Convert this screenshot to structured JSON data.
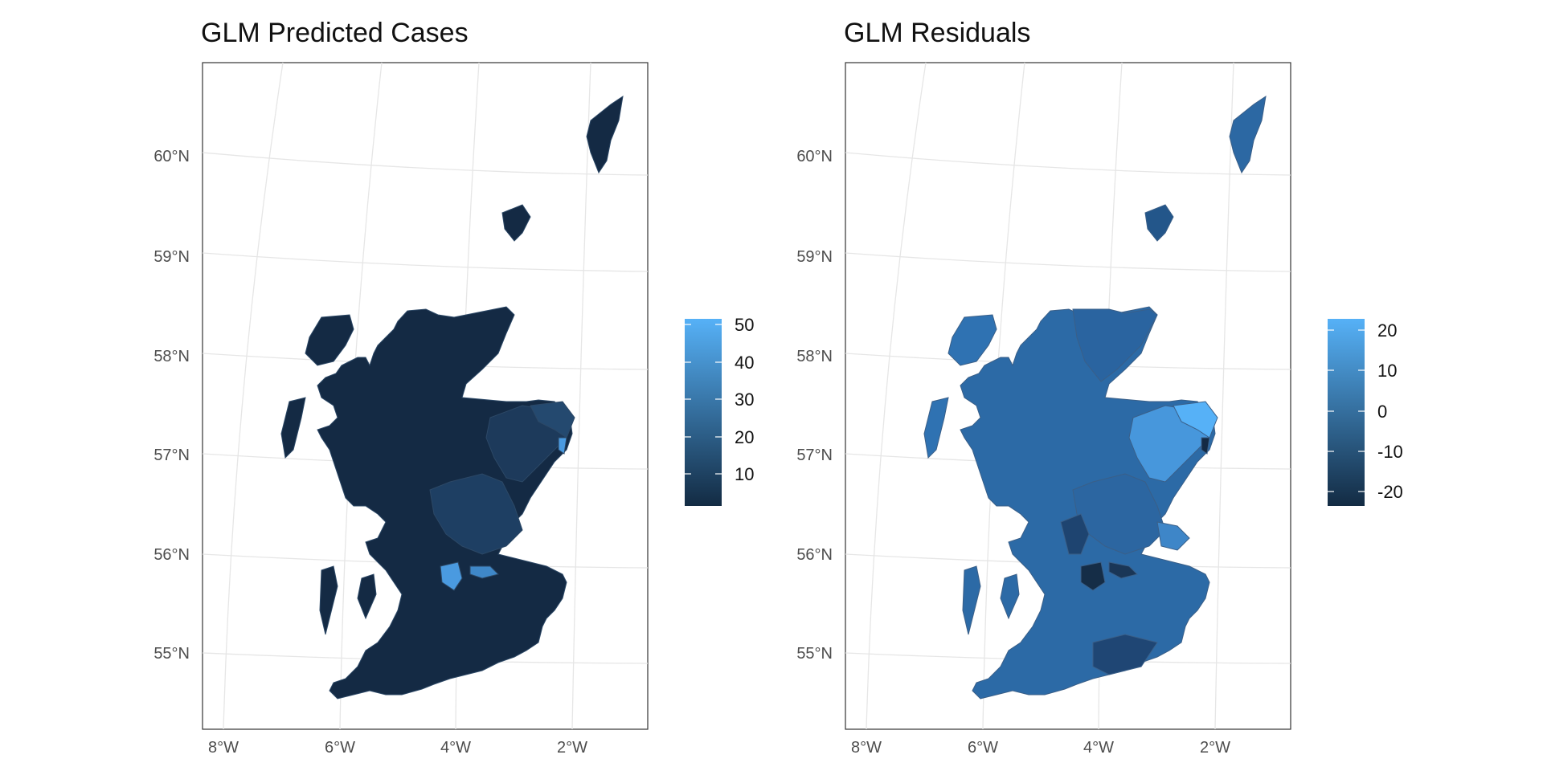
{
  "panels": [
    {
      "title": "GLM Predicted Cases",
      "legend": {
        "ticks": [
          "50",
          "40",
          "30",
          "20",
          "10"
        ],
        "color_low": "#132b43",
        "color_high": "#56b1f7"
      }
    },
    {
      "title": "GLM Residuals",
      "legend": {
        "ticks": [
          "20",
          "10",
          "0",
          "-10",
          "-20"
        ],
        "color_low": "#132b43",
        "color_high": "#56b1f7"
      }
    }
  ],
  "axes": {
    "lat_labels": [
      "60°N",
      "59°N",
      "58°N",
      "57°N",
      "56°N",
      "55°N"
    ],
    "lon_labels": [
      "8°W",
      "6°W",
      "4°W",
      "2°W"
    ]
  },
  "colors": {
    "panel_border": "#333333",
    "graticule": "#e6e6e6",
    "region_dark": "#132b43",
    "region_mid": "#2c5d8f",
    "region_light": "#56b1f7",
    "region_border": "#3a5573"
  }
}
